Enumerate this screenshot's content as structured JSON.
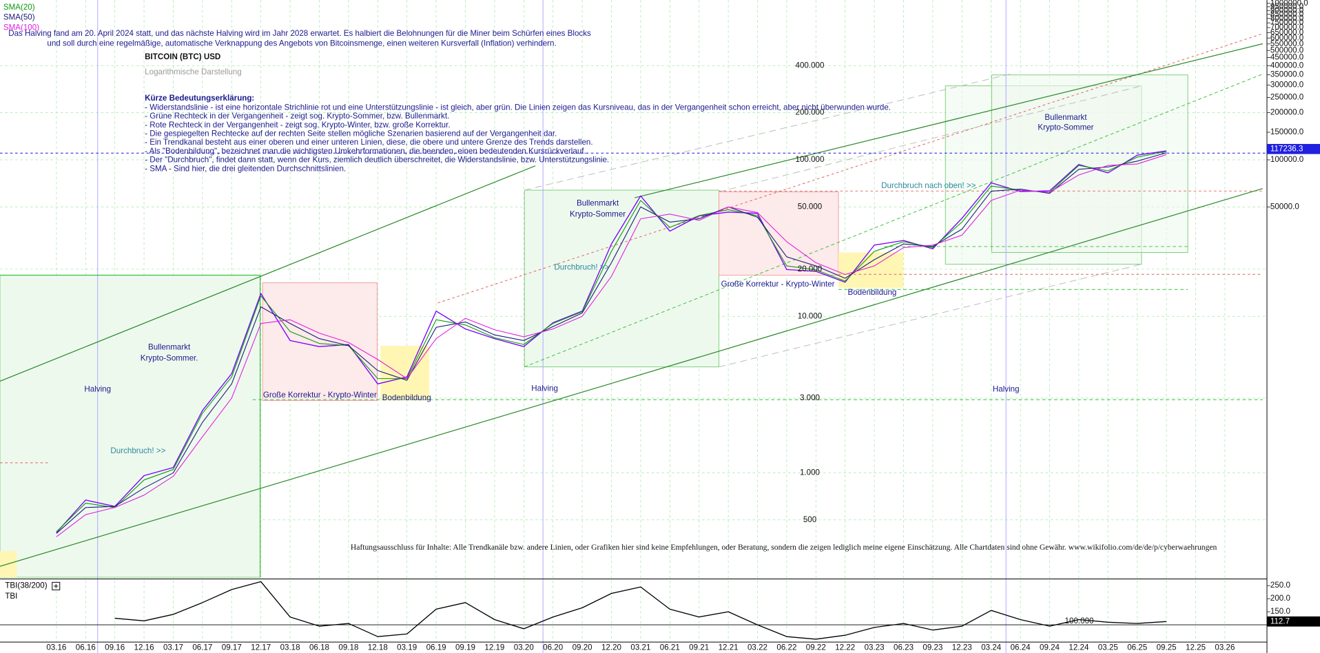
{
  "chart_data": [
    {
      "type": "line",
      "title": "BITCOIN (BTC) USD",
      "subtitle": "Logarithmische Darstellung",
      "intro": [
        "Das Halving fand am 20. April 2024 statt, und das nächste Halving wird im Jahr 2028 erwartet. Es halbiert die Belohnungen für die Miner beim Schürfen eines Blocks",
        "und soll durch eine regelmäßige, automatische Verknappung des Angebots von Bitcoinsmenge, einen weiteren Kursverfall (Inflation) verhindern."
      ],
      "notes_title": "Kürze Bedeutungserklärung:",
      "notes": [
        "- Widerstandslinie - ist eine horizontale Strichlinie rot und eine Unterstützungslinie - ist gleich, aber grün. Die Linien zeigen das Kursniveau, das in der Vergangenheit schon erreicht, aber nicht überwunden wurde.",
        "- Grüne Rechteck in der Vergangenheit - zeigt sog. Krypto-Sommer, bzw. Bullenmarkt.",
        "- Rote Rechteck in der Vergangenheit - zeigt sog. Krypto-Winter, bzw. große Korrektur.",
        "- Die gespiegelten Rechtecke auf der rechten Seite stellen mögliche Szenarien basierend auf der Vergangenheit dar.",
        "- Ein Trendkanal besteht aus einer oberen und einer unteren Linien, diese, die obere und untere Grenze des Trends darstellen.",
        "- Als \"Bodenbildung\", bezeichnet man die wichtigsten Umkehrformationen, die beenden, einen bedeutenden Kursrückverlauf.",
        "- Der \"Durchbruch\", findet dann statt, wenn der Kurs, ziemlich deutlich überschreitet, die Widerstandslinie, bzw. Unterstützungslinie.",
        "- SMA - Sind hier, die drei gleitenden Durchschnittslinien."
      ],
      "annotations": [
        "Halving",
        "Halving",
        "Halving",
        "Bullenmarkt",
        "Krypto-Sommer.",
        "Durchbruch! >>",
        "Große Korrektur - Krypto-Winter",
        "Bodenbildung",
        "Bullenmarkt",
        "Krypto-Sommer",
        "Durchbruch! >>",
        "Große Korrektur - Krypto-Winter",
        "Bodenbildung",
        "Durchbruch nach oben! >>",
        "Bullenmarkt",
        "Krypto-Sommer"
      ],
      "disclaimer": "Haftungsausschluss für Inhalte: Alle Trendkanäle bzw. andere Linien, oder Grafiken hier sind keine Empfehlungen, oder Beratung, sondern die zeigen lediglich meine eigene Einschätzung. Alle Chartdaten sind ohne Gewähr.  www.wikifolio.com/de/de/p/cyberwaehrungen",
      "categories": [
        "03.16",
        "06.16",
        "09.16",
        "12.16",
        "03.17",
        "06.17",
        "09.17",
        "12.17",
        "03.18",
        "06.18",
        "09.18",
        "12.18",
        "03.19",
        "06.19",
        "09.19",
        "12.19",
        "03.20",
        "06.20",
        "09.20",
        "12.20",
        "03.21",
        "06.21",
        "09.21",
        "12.21",
        "03.22",
        "06.22",
        "09.22",
        "12.22",
        "03.23",
        "06.23",
        "09.23",
        "12.23",
        "03.24",
        "06.24",
        "09.24",
        "12.24",
        "03.25",
        "06.25",
        "09.25",
        "12.25",
        "03.26"
      ],
      "series": [
        {
          "color": "#7a00ff",
          "values": [
            415,
            670,
            610,
            960,
            1080,
            2500,
            4300,
            14000,
            7000,
            6400,
            6600,
            3700,
            4100,
            10800,
            8300,
            7200,
            6400,
            9100,
            10800,
            29000,
            58800,
            35000,
            43800,
            46300,
            45500,
            19900,
            19400,
            16500,
            28500,
            30500,
            27000,
            42300,
            71300,
            62700,
            63300,
            93400,
            82500,
            107000,
            114000,
            null,
            null
          ]
        },
        {
          "name": "SMA(20)",
          "color": "#0a9a0a",
          "values": [
            420,
            640,
            600,
            900,
            1050,
            2400,
            4100,
            13500,
            8000,
            6700,
            6500,
            4000,
            4000,
            9500,
            8800,
            7300,
            6600,
            9000,
            10700,
            26000,
            55000,
            37000,
            44000,
            48000,
            44000,
            21000,
            19800,
            16800,
            26000,
            30000,
            27500,
            40000,
            68000,
            64000,
            62000,
            92000,
            85000,
            104000,
            113000,
            null,
            null
          ]
        },
        {
          "name": "SMA(50)",
          "color": "#1a1a7a",
          "values": [
            410,
            600,
            610,
            800,
            1000,
            2100,
            3700,
            11500,
            9000,
            7200,
            6500,
            4500,
            3900,
            8500,
            9200,
            7600,
            7000,
            8600,
            10500,
            22000,
            50000,
            40000,
            42000,
            50000,
            43000,
            24000,
            21000,
            17500,
            23000,
            29000,
            28000,
            36000,
            63000,
            65000,
            61000,
            87000,
            90000,
            98000,
            111000,
            null,
            null
          ]
        },
        {
          "name": "SMA(100)",
          "color": "#e020e0",
          "values": [
            390,
            540,
            600,
            720,
            950,
            1700,
            3000,
            9000,
            9500,
            7800,
            6800,
            5300,
            4000,
            7200,
            9700,
            8200,
            7400,
            8300,
            10000,
            18000,
            42000,
            45000,
            41000,
            50000,
            46000,
            30000,
            22000,
            18500,
            21000,
            27500,
            28500,
            33000,
            55000,
            64000,
            62000,
            80000,
            92000,
            94000,
            108000,
            null,
            null
          ]
        }
      ],
      "log_scale": true,
      "grid": true,
      "ylim": [
        215,
        1050000
      ],
      "yticks": [
        {
          "value": 400000,
          "label": "400.000"
        },
        {
          "value": 200000,
          "label": "200.000"
        },
        {
          "value": 100000,
          "label": "100.000"
        },
        {
          "value": 50000,
          "label": "50.000"
        },
        {
          "value": 20000,
          "label": "20.000"
        },
        {
          "value": 10000,
          "label": "10.000"
        },
        {
          "value": 3000,
          "label": "3.000"
        },
        {
          "value": 1000,
          "label": "1.000"
        },
        500
      ],
      "y2lim": [
        215,
        1050000
      ],
      "y2ticks": [
        {
          "value": 50000,
          "label": "50000.0"
        },
        {
          "value": 100000,
          "label": "100000.0"
        },
        {
          "value": 150000,
          "label": "150000.0"
        },
        {
          "value": 200000,
          "label": "200000.0"
        },
        {
          "value": 250000,
          "label": "250000.0"
        },
        {
          "value": 300000,
          "label": "300000.0"
        },
        {
          "value": 350000,
          "label": "350000.0"
        },
        {
          "value": 400000,
          "label": "400000.0"
        },
        {
          "value": 450000,
          "label": "450000.0"
        },
        {
          "value": 500000,
          "label": "500000.0"
        },
        {
          "value": 550000,
          "label": "550000.0"
        },
        {
          "value": 600000,
          "label": "600000.0"
        },
        {
          "value": 650000,
          "label": "650000.0"
        },
        {
          "value": 700000,
          "label": "700000.0"
        },
        {
          "value": 750000,
          "label": "750000.0"
        },
        {
          "value": 800000,
          "label": "800000.0"
        },
        {
          "value": 850000,
          "label": "850000.0"
        },
        {
          "value": 900000,
          "label": "900000.0"
        },
        {
          "value": 950000,
          "label": "950000.0"
        },
        {
          "value": 1000000,
          "label": "1000000.0"
        }
      ],
      "last_value": 117236.3
    },
    {
      "type": "line",
      "title": "TBI(38/200)",
      "series": [
        {
          "name": "TBI",
          "color": "#000000",
          "values": [
            null,
            null,
            125,
            115,
            140,
            185,
            235,
            265,
            130,
            95,
            105,
            55,
            65,
            160,
            185,
            120,
            85,
            130,
            165,
            220,
            245,
            160,
            130,
            150,
            100,
            55,
            45,
            60,
            90,
            105,
            80,
            95,
            155,
            120,
            95,
            120,
            110,
            105,
            112.7,
            null,
            null
          ]
        }
      ],
      "ylim": [
        34,
        269
      ],
      "yticks": [
        {
          "value": 250,
          "label": "250.0"
        },
        {
          "value": 200,
          "label": "200.0"
        },
        {
          "value": 150,
          "label": "150.0"
        }
      ],
      "reference_line": {
        "value": 100,
        "label": "100.000"
      },
      "last_value": 112.7
    }
  ]
}
